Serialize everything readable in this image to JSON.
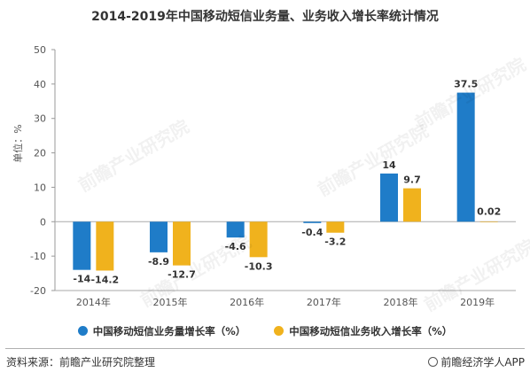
{
  "title": "2014-2019年中国移动短信业务量、业务收入增长率统计情况",
  "chart_data": {
    "type": "bar",
    "title": "2014-2019年中国移动短信业务量、业务收入增长率统计情况",
    "ylabel": "单位：%",
    "xlabel": "",
    "ylim": [
      -20,
      50
    ],
    "yticks": [
      -20,
      -10,
      0,
      10,
      20,
      30,
      40,
      50
    ],
    "categories": [
      "2014年",
      "2015年",
      "2016年",
      "2017年",
      "2018年",
      "2019年"
    ],
    "series": [
      {
        "name": "中国移动短信业务量增长率（%）",
        "color": "#1f7cc8",
        "values": [
          -14,
          -8.9,
          -4.6,
          -0.4,
          14,
          37.5
        ],
        "labels": [
          "-14",
          "-8.9",
          "-4.6",
          "-0.4",
          "14",
          "37.5"
        ]
      },
      {
        "name": "中国移动短信业务收入增长率（%）",
        "color": "#f0b21d",
        "values": [
          -14.2,
          -12.7,
          -10.3,
          -3.2,
          9.7,
          0.02
        ],
        "labels": [
          "-14.2",
          "-12.7",
          "-10.3",
          "-3.2",
          "9.7",
          "0.02"
        ]
      }
    ],
    "grid": false,
    "legend_position": "bottom"
  },
  "watermark": "前瞻产业研究院",
  "footer": {
    "source": "资料来源：前瞻产业研究院整理",
    "brand": "前瞻经济学人APP"
  }
}
